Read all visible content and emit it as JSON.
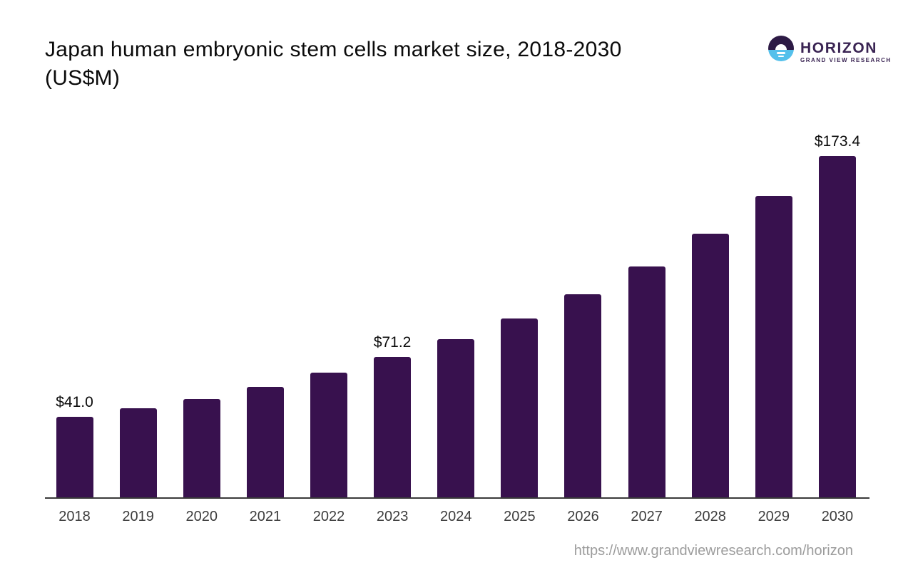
{
  "header": {
    "title_line1": "Japan human embryonic stem cells market size, 2018-2030",
    "title_line2": "(US$M)",
    "logo": {
      "name": "HORIZON",
      "subtitle": "GRAND VIEW RESEARCH",
      "purple": "#2d1a45",
      "blue": "#55c0eb",
      "text_color": "#3a2453"
    }
  },
  "chart_data": {
    "type": "bar",
    "title": "Japan human embryonic stem cells market size, 2018-2030 (US$M)",
    "unit": "US$M",
    "categories": [
      "2018",
      "2019",
      "2020",
      "2021",
      "2022",
      "2023",
      "2024",
      "2025",
      "2026",
      "2027",
      "2028",
      "2029",
      "2030"
    ],
    "values": [
      41.0,
      45.3,
      50.1,
      56.3,
      63.5,
      71.2,
      80.3,
      90.8,
      103.3,
      117.5,
      134.0,
      153.0,
      173.4
    ],
    "data_labels": [
      "$41.0",
      null,
      null,
      null,
      null,
      "$71.2",
      null,
      null,
      null,
      null,
      null,
      null,
      "$173.4"
    ],
    "bar_color": "#38114e",
    "axis_color": "#3a3a3a",
    "value_label_color": "#0b0b0b",
    "tick_label_color": "#3d3d3d",
    "ylim": [
      0,
      181
    ],
    "grid": false,
    "legend": "none"
  },
  "footer": {
    "url": "https://www.grandviewresearch.com/horizon"
  }
}
